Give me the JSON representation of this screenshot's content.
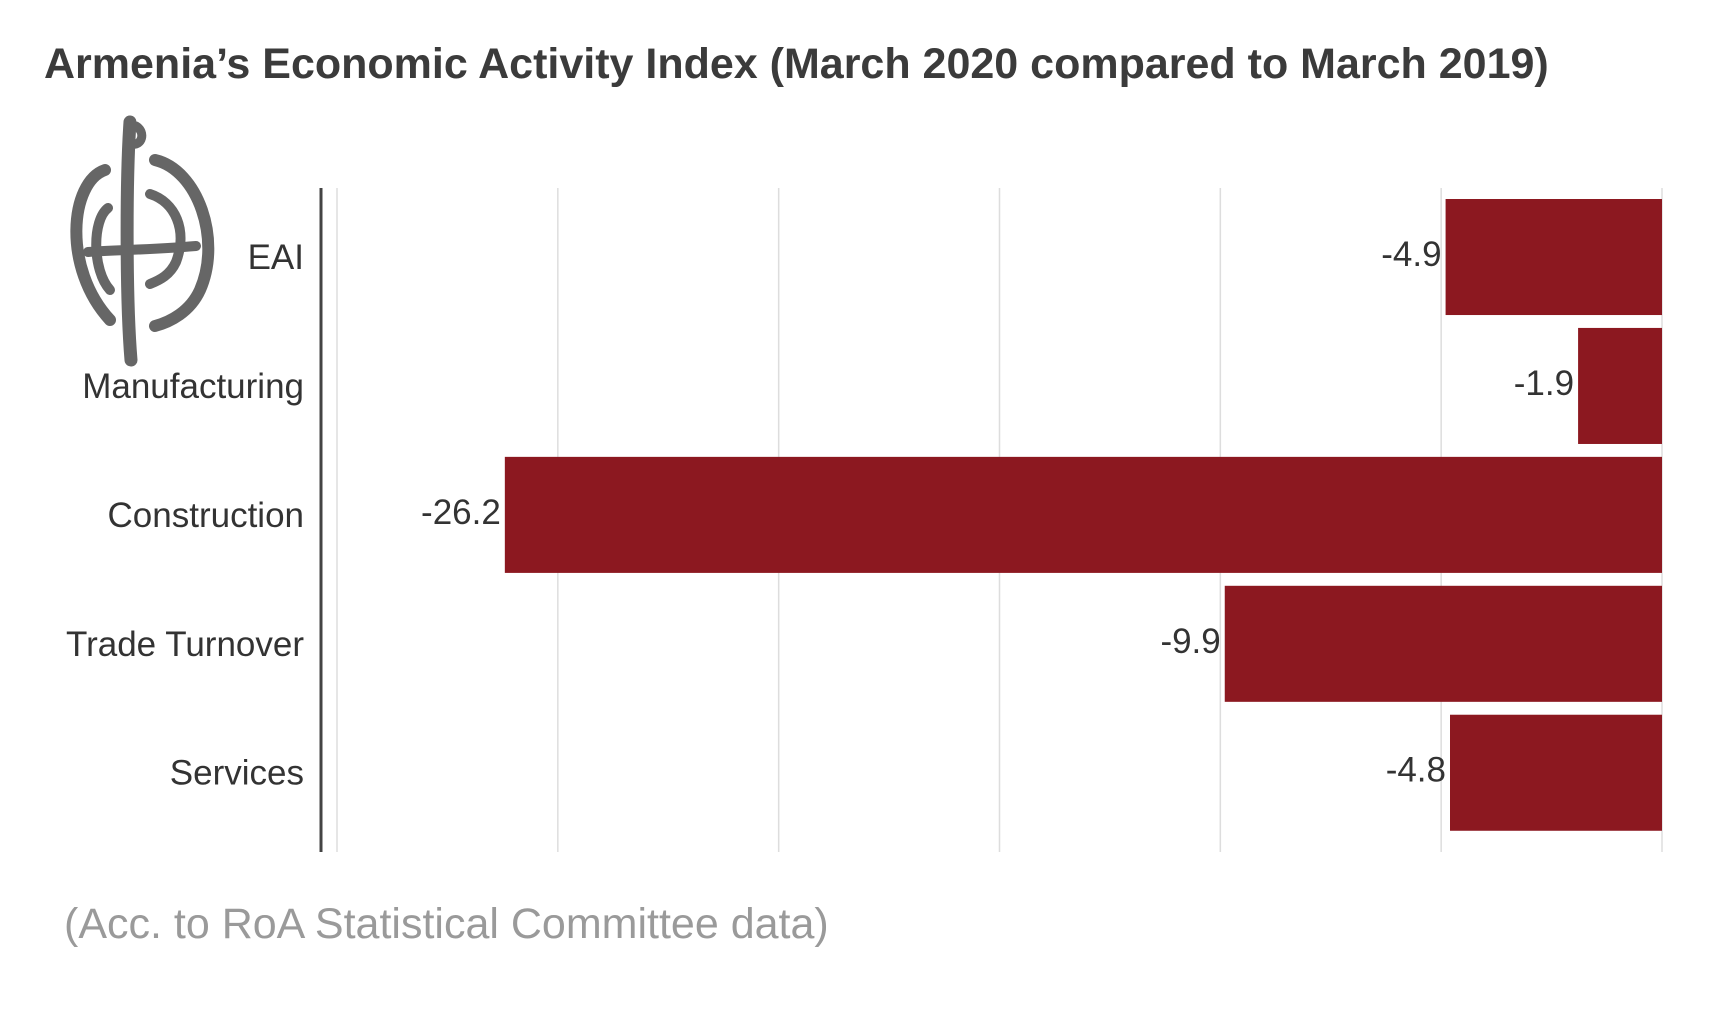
{
  "chart_data": {
    "type": "bar",
    "orientation": "horizontal",
    "title": "Armenia’s Economic Activity Index (March 2020 compared to March 2019)",
    "source_note": "(Acc. to RoA Statistical Committee data)",
    "categories": [
      "EAI",
      "Manufacturing",
      "Construction",
      "Trade Turnover",
      "Services"
    ],
    "values": [
      -4.9,
      -1.9,
      -26.2,
      -9.9,
      -4.8
    ],
    "value_labels": [
      "-4.9",
      "-1.9",
      "-26.2",
      "-9.9",
      "-4.8"
    ],
    "xlim": [
      -30,
      0
    ],
    "x_gridlines": [
      -30,
      -25,
      -20,
      -15,
      -10,
      -5,
      0
    ],
    "grid": true,
    "bar_color": "#8c1820",
    "logo_icon": "armenian-emblem-icon"
  }
}
